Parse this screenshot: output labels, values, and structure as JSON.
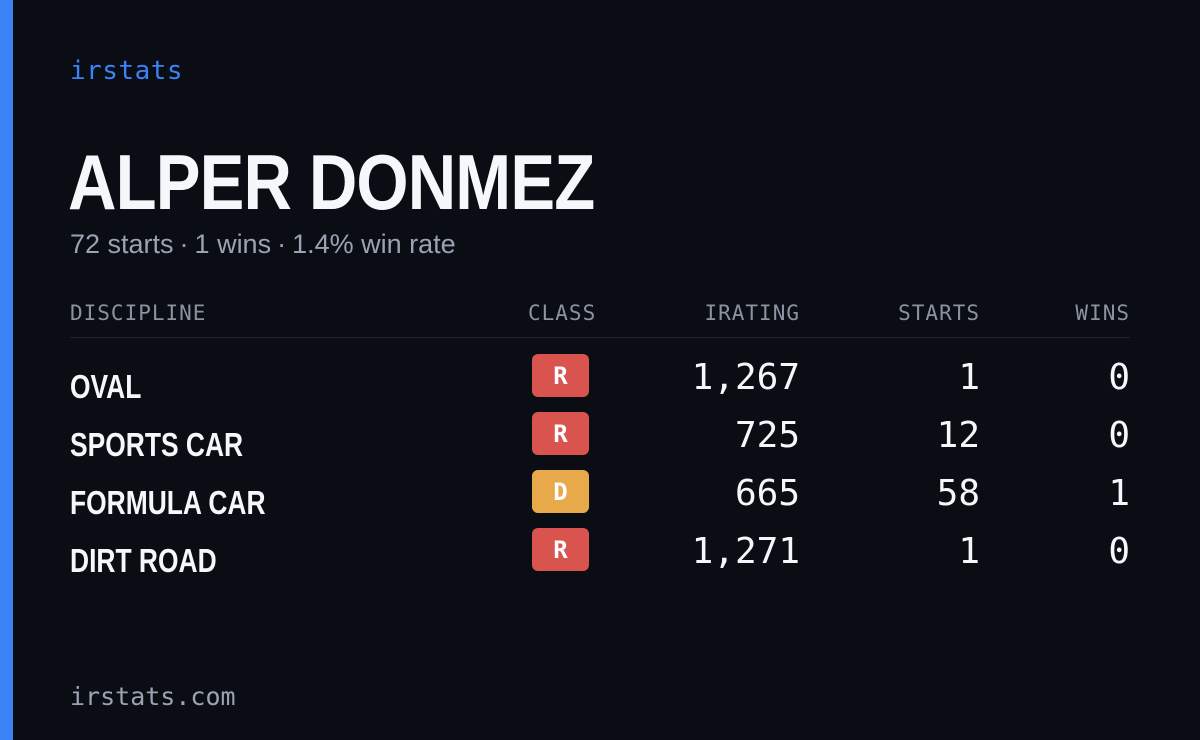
{
  "brand": "irstats",
  "driver": {
    "name": "ALPER DONMEZ",
    "starts_text": "72 starts",
    "wins_text": "1 wins",
    "win_rate_text": "1.4% win rate",
    "separator": "·"
  },
  "table": {
    "headers": {
      "discipline": "DISCIPLINE",
      "class": "CLASS",
      "irating": "IRATING",
      "starts": "STARTS",
      "wins": "WINS"
    },
    "rows": [
      {
        "discipline": "OVAL",
        "class": "R",
        "class_color": "#d9534f",
        "irating": "1,267",
        "starts": "1",
        "wins": "0"
      },
      {
        "discipline": "SPORTS CAR",
        "class": "R",
        "class_color": "#d9534f",
        "irating": "725",
        "starts": "12",
        "wins": "0"
      },
      {
        "discipline": "FORMULA CAR",
        "class": "D",
        "class_color": "#e8a94a",
        "irating": "665",
        "starts": "58",
        "wins": "1"
      },
      {
        "discipline": "DIRT ROAD",
        "class": "R",
        "class_color": "#d9534f",
        "irating": "1,271",
        "starts": "1",
        "wins": "0"
      }
    ]
  },
  "footer": "irstats.com",
  "colors": {
    "background": "#0a0d14",
    "accent": "#3b82f6",
    "text_primary": "#f5f7fa",
    "text_muted": "#9aa3b2"
  }
}
